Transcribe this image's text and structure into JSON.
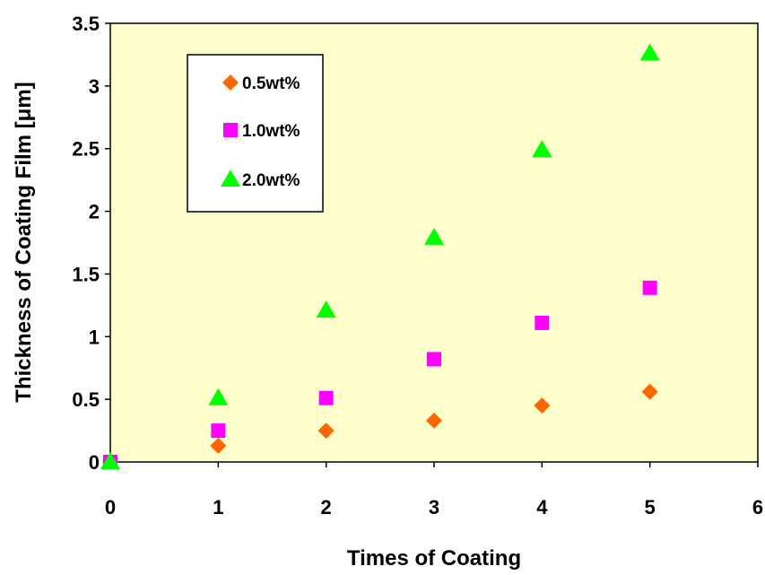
{
  "chart_data": {
    "type": "scatter",
    "title": "",
    "xlabel": "Times of Coating",
    "ylabel": "Thickness of Coating Film [μm]",
    "xlim": [
      0,
      6
    ],
    "ylim": [
      0,
      3.5
    ],
    "x_ticks": [
      "0",
      "1",
      "2",
      "3",
      "4",
      "5",
      "6"
    ],
    "y_ticks": [
      "0",
      "0.5",
      "1",
      "1.5",
      "2",
      "2.5",
      "3",
      "3.5"
    ],
    "grid": false,
    "plot_background": "#FFFFCC",
    "legend_position": "top-left",
    "series": [
      {
        "name": "0.5wt%",
        "marker": "diamond",
        "color": "#FF6600",
        "points": [
          [
            0,
            0
          ],
          [
            1,
            0.13
          ],
          [
            2,
            0.25
          ],
          [
            3,
            0.33
          ],
          [
            4,
            0.45
          ],
          [
            5,
            0.56
          ]
        ]
      },
      {
        "name": "1.0wt%",
        "marker": "square",
        "color": "#FF00FF",
        "points": [
          [
            0,
            0
          ],
          [
            1,
            0.25
          ],
          [
            2,
            0.51
          ],
          [
            3,
            0.82
          ],
          [
            4,
            1.11
          ],
          [
            5,
            1.39
          ]
        ]
      },
      {
        "name": "2.0wt%",
        "marker": "triangle",
        "color": "#00FF00",
        "points": [
          [
            0,
            0
          ],
          [
            1,
            0.51
          ],
          [
            2,
            1.21
          ],
          [
            3,
            1.79
          ],
          [
            4,
            2.49
          ],
          [
            5,
            3.26
          ]
        ]
      }
    ]
  }
}
